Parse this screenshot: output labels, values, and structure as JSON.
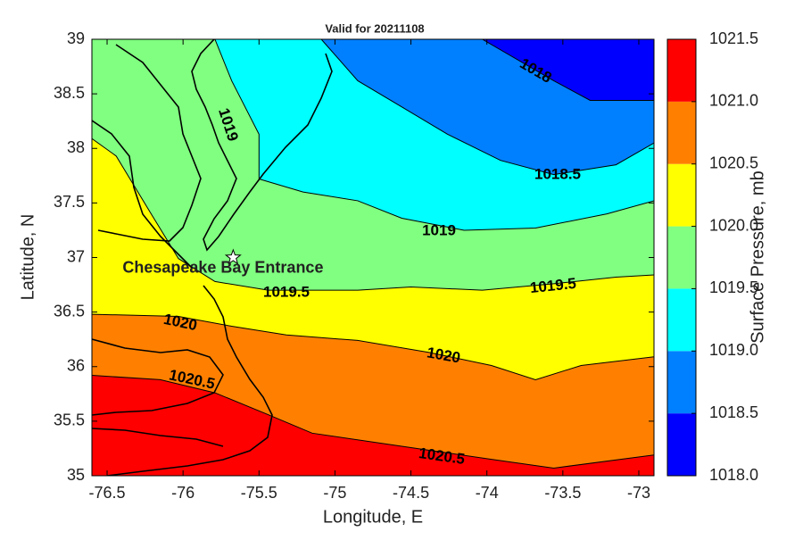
{
  "chart_data": {
    "type": "contour",
    "title": "Valid for 20211108",
    "xlabel": "Longitude, E",
    "ylabel": "Latitude, N",
    "xlim": [
      -76.6,
      -72.9
    ],
    "ylim": [
      35,
      39
    ],
    "xticks": [
      -76.5,
      -76,
      -75.5,
      -75,
      -74.5,
      -74,
      -73.5,
      -73
    ],
    "yticks": [
      35,
      35.5,
      36,
      36.5,
      37,
      37.5,
      38,
      38.5,
      39
    ],
    "base_color": "#ff0000",
    "contours": [
      {
        "level": 1020.5,
        "color": "#ff8000",
        "x": [
          -76.6,
          -76.15,
          -75.79,
          -75.44,
          -75.15,
          -74.56,
          -73.97,
          -73.56,
          -72.9
        ],
        "y": [
          35.92,
          35.88,
          35.76,
          35.56,
          35.39,
          35.27,
          35.15,
          35.07,
          35.19
        ]
      },
      {
        "level": 1020,
        "color": "#ffff00",
        "x": [
          -76.6,
          -76.03,
          -75.68,
          -75.32,
          -74.85,
          -74.38,
          -73.97,
          -73.68,
          -73.38,
          -72.9
        ],
        "y": [
          36.48,
          36.46,
          36.37,
          36.29,
          36.24,
          36.13,
          36.01,
          35.88,
          36.01,
          36.09
        ]
      },
      {
        "level": 1019.5,
        "color": "#80ff80",
        "x": [
          -76.6,
          -76.44,
          -76.21,
          -76.03,
          -75.79,
          -75.44,
          -74.85,
          -74.5,
          -74.03,
          -73.56,
          -73.15,
          -72.9
        ],
        "y": [
          38.09,
          37.93,
          37.4,
          36.99,
          36.78,
          36.7,
          36.7,
          36.73,
          36.7,
          36.76,
          36.82,
          36.84
        ]
      },
      {
        "level": 1019,
        "color": "#00ffff",
        "x": [
          -75.79,
          -75.68,
          -75.5,
          -75.5,
          -75.21,
          -74.85,
          -74.56,
          -74.15,
          -73.68,
          -73.21,
          -72.9
        ],
        "y": [
          39,
          38.62,
          38.13,
          37.72,
          37.6,
          37.52,
          37.36,
          37.25,
          37.27,
          37.4,
          37.52
        ]
      },
      {
        "level": 1018.5,
        "color": "#0080ff",
        "x": [
          -75.09,
          -74.85,
          -74.56,
          -74.26,
          -73.91,
          -73.56,
          -73.15,
          -72.9
        ],
        "y": [
          39,
          38.62,
          38.38,
          38.13,
          37.89,
          37.76,
          37.85,
          38.05
        ]
      },
      {
        "level": 1018,
        "color": "#0000ff",
        "x": [
          -74.03,
          -73.56,
          -73.32,
          -72.9
        ],
        "y": [
          39,
          38.62,
          38.44,
          38.44
        ]
      }
    ],
    "annotation": {
      "text": "Chesapeake Bay Entrance",
      "x": -75.67,
      "y": 37
    },
    "colorbar": {
      "label": "Surface Pressure, mb",
      "lim": [
        1018,
        1021.5
      ],
      "colors": [
        "#0000ff",
        "#0080ff",
        "#00ffff",
        "#80ff80",
        "#ffff00",
        "#ff8000",
        "#ff0000"
      ],
      "ticks": [
        {
          "value": 1018,
          "label": "1018.0"
        },
        {
          "value": 1018.5,
          "label": "1018.5"
        },
        {
          "value": 1019,
          "label": "1019.0"
        },
        {
          "value": 1019.5,
          "label": "1019.5"
        },
        {
          "value": 1020,
          "label": "1020.0"
        },
        {
          "value": 1020.5,
          "label": "1020.5"
        },
        {
          "value": 1021,
          "label": "1021.0"
        },
        {
          "value": 1021.5,
          "label": "1021.5"
        }
      ]
    }
  }
}
